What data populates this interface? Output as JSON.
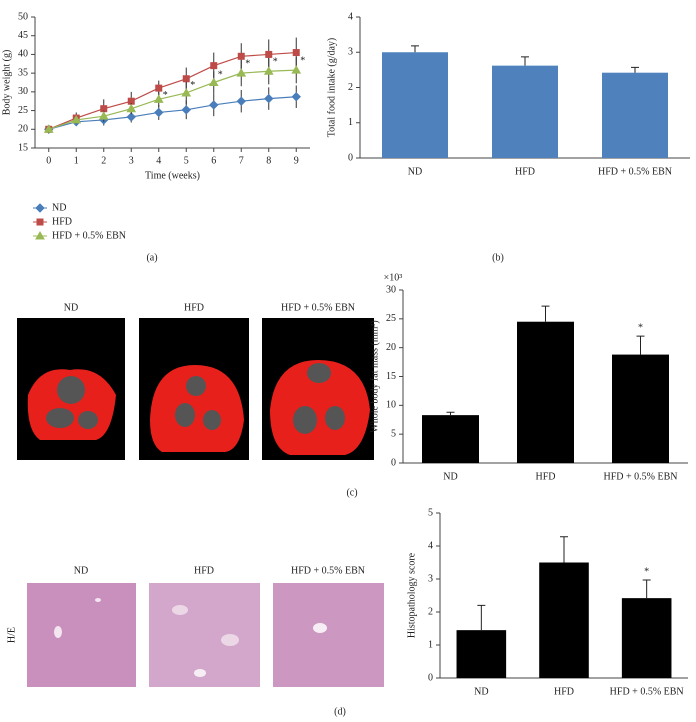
{
  "chart_data": [
    {
      "type": "line",
      "x_label": "Time (weeks)",
      "y_label": "Body weight (g)",
      "x": [
        0,
        1,
        2,
        3,
        4,
        5,
        6,
        7,
        8,
        9
      ],
      "xlim": [
        -0.5,
        9.5
      ],
      "xticks": [
        0,
        1,
        2,
        3,
        4,
        5,
        6,
        7,
        8,
        9
      ],
      "ylim": [
        15,
        50
      ],
      "yticks": [
        15,
        20,
        25,
        30,
        35,
        40,
        45,
        50
      ],
      "legend": "below-left",
      "series": [
        {
          "name": "ND",
          "color": "#4a7ebb",
          "marker": "diamond",
          "values": [
            20,
            22,
            22.5,
            23.3,
            24.5,
            25.2,
            26.5,
            27.5,
            28.2,
            28.7
          ],
          "errors": [
            1,
            1,
            1.5,
            1.5,
            2,
            2.5,
            3,
            3,
            3,
            3
          ]
        },
        {
          "name": "HFD",
          "color": "#be4b48",
          "marker": "square",
          "values": [
            20,
            23,
            25.5,
            27.5,
            31,
            33.5,
            37,
            39.5,
            40,
            40.5
          ],
          "errors": [
            1,
            1.5,
            2.5,
            2.5,
            2,
            3,
            3.5,
            3.5,
            4,
            4
          ]
        },
        {
          "name": "HFD + 0.5% EBN",
          "color": "#98b954",
          "marker": "triangle",
          "values": [
            20,
            22.5,
            23.5,
            25.5,
            28,
            29.7,
            32.5,
            35,
            35.5,
            35.8
          ],
          "errors": [
            1,
            1,
            1.5,
            1.5,
            2,
            3,
            3,
            3.5,
            3.5,
            3.5
          ]
        }
      ],
      "annotations": [
        {
          "x": 4,
          "text": "*"
        },
        {
          "x": 5,
          "text": "*"
        },
        {
          "x": 6,
          "text": "*"
        },
        {
          "x": 7,
          "text": "*"
        },
        {
          "x": 8,
          "text": "*"
        },
        {
          "x": 9,
          "text": "*"
        }
      ]
    },
    {
      "type": "bar",
      "y_label": "Total food intake (g/day)",
      "categories": [
        "ND",
        "HFD",
        "HFD + 0.5% EBN"
      ],
      "values": [
        3.0,
        2.62,
        2.42
      ],
      "errors": [
        0.18,
        0.25,
        0.15
      ],
      "color": "#4f81bd",
      "ylim": [
        0,
        4
      ],
      "yticks": [
        0,
        1,
        2,
        3,
        4
      ]
    },
    {
      "type": "bar",
      "y_label": "Whole body fat mass (mm³)",
      "y_scale_label": "×10³",
      "categories": [
        "ND",
        "HFD",
        "HFD + 0.5% EBN"
      ],
      "values": [
        8.3,
        24.5,
        18.8
      ],
      "errors": [
        0.5,
        2.7,
        3.2
      ],
      "color": "#000000",
      "ylim": [
        0,
        30
      ],
      "yticks": [
        0,
        5,
        10,
        15,
        20,
        25,
        30
      ],
      "annotations": [
        {
          "x": "HFD + 0.5% EBN",
          "text": "*"
        }
      ]
    },
    {
      "type": "bar",
      "y_label": "Histopathology score",
      "categories": [
        "ND",
        "HFD",
        "HFD + 0.5% EBN"
      ],
      "values": [
        1.45,
        3.5,
        2.42
      ],
      "errors": [
        0.75,
        0.78,
        0.55
      ],
      "color": "#000000",
      "ylim": [
        0,
        5
      ],
      "yticks": [
        0,
        1,
        2,
        3,
        4,
        5
      ],
      "annotations": [
        {
          "x": "HFD + 0.5% EBN",
          "text": "*"
        }
      ]
    }
  ],
  "figure": {
    "panel_labels": [
      "(a)",
      "(b)",
      "(c)",
      "(d)"
    ],
    "ct_labels": [
      "ND",
      "HFD",
      "HFD + 0.5% EBN"
    ],
    "histology_labels": [
      "ND",
      "HFD",
      "HFD + 0.5% EBN"
    ],
    "histology_stain": "H/E"
  }
}
